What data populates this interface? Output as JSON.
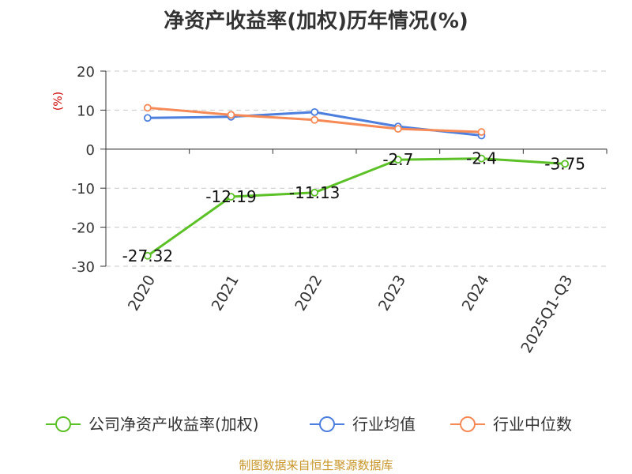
{
  "title": "净资产收益率(加权)历年情况(%)",
  "footer": "制图数据来自恒生聚源数据库",
  "chart_data": {
    "type": "line",
    "y_unit": "(%)",
    "categories": [
      "2020",
      "2021",
      "2022",
      "2023",
      "2024",
      "2025Q1-Q3"
    ],
    "ylim": [
      -30,
      20
    ],
    "yticks": [
      20,
      10,
      0,
      -10,
      -20,
      -30
    ],
    "grid": true,
    "legend_position": "bottom",
    "series": [
      {
        "name": "公司净资产收益率(加权)",
        "color": "#5cc127",
        "values": [
          -27.32,
          -12.19,
          -11.13,
          -2.7,
          -2.4,
          -3.75
        ],
        "labels": [
          "-27.32",
          "-12.19",
          "-11.13",
          "-2.7",
          "-2.4",
          "-3.75"
        ]
      },
      {
        "name": "行业均值",
        "color": "#4d7fde",
        "values": [
          8.0,
          8.3,
          9.5,
          5.8,
          3.5,
          null
        ]
      },
      {
        "name": "行业中位数",
        "color": "#f68a57",
        "values": [
          10.6,
          8.8,
          7.5,
          5.2,
          4.4,
          null
        ]
      }
    ]
  }
}
